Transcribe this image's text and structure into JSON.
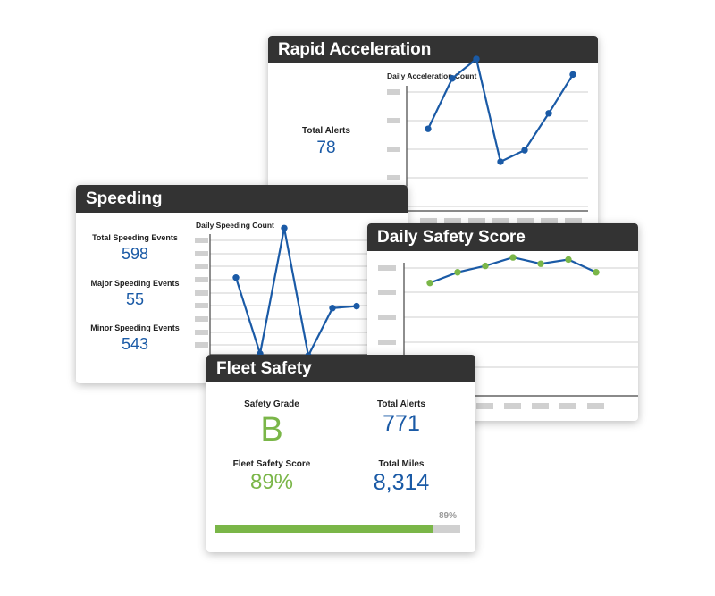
{
  "rapid_acceleration": {
    "title": "Rapid Acceleration",
    "total_alerts_label": "Total Alerts",
    "total_alerts_value": "78",
    "chart_title": "Daily Acceleration Count"
  },
  "speeding": {
    "title": "Speeding",
    "total_label": "Total Speeding Events",
    "total_value": "598",
    "major_label": "Major Speeding Events",
    "major_value": "55",
    "minor_label": "Minor Speeding Events",
    "minor_value": "543",
    "chart_title": "Daily Speeding Count"
  },
  "daily_safety_score": {
    "title": "Daily Safety Score"
  },
  "fleet_safety": {
    "title": "Fleet Safety",
    "safety_grade_label": "Safety Grade",
    "safety_grade_value": "B",
    "total_alerts_label": "Total Alerts",
    "total_alerts_value": "771",
    "fleet_score_label": "Fleet Safety Score",
    "fleet_score_value": "89%",
    "total_miles_label": "Total Miles",
    "total_miles_value": "8,314",
    "progress_label": "89%",
    "progress_fraction": 0.89
  },
  "colors": {
    "header_bg": "#333333",
    "line_blue": "#1a5aa6",
    "accent_green": "#7ab648",
    "placeholder_gray": "#d0d0d0"
  },
  "chart_data": [
    {
      "type": "line",
      "title": "Daily Acceleration Count",
      "x": [
        1,
        2,
        3,
        4,
        5,
        6,
        7
      ],
      "values": [
        5.2,
        7.8,
        8.8,
        3.5,
        4.1,
        6.0,
        8.0
      ],
      "ylim": [
        0,
        10
      ],
      "grid": true,
      "line_color": "#1a5aa6",
      "marker_color": "#1a5aa6"
    },
    {
      "type": "line",
      "title": "Daily Speeding Count",
      "x": [
        1,
        2,
        3,
        4,
        5,
        6
      ],
      "values": [
        6.4,
        2.4,
        9.0,
        2.3,
        4.8,
        4.9
      ],
      "ylim": [
        0,
        10
      ],
      "grid": true,
      "line_color": "#1a5aa6",
      "marker_color": "#1a5aa6"
    },
    {
      "type": "line",
      "title": "",
      "x": [
        1,
        2,
        3,
        4,
        5,
        6,
        7
      ],
      "values": [
        7.2,
        7.7,
        8.0,
        8.4,
        8.1,
        8.3,
        7.7
      ],
      "ylim": [
        0,
        10
      ],
      "grid": true,
      "line_color": "#1a5aa6",
      "marker_color": "#7ab648"
    }
  ]
}
